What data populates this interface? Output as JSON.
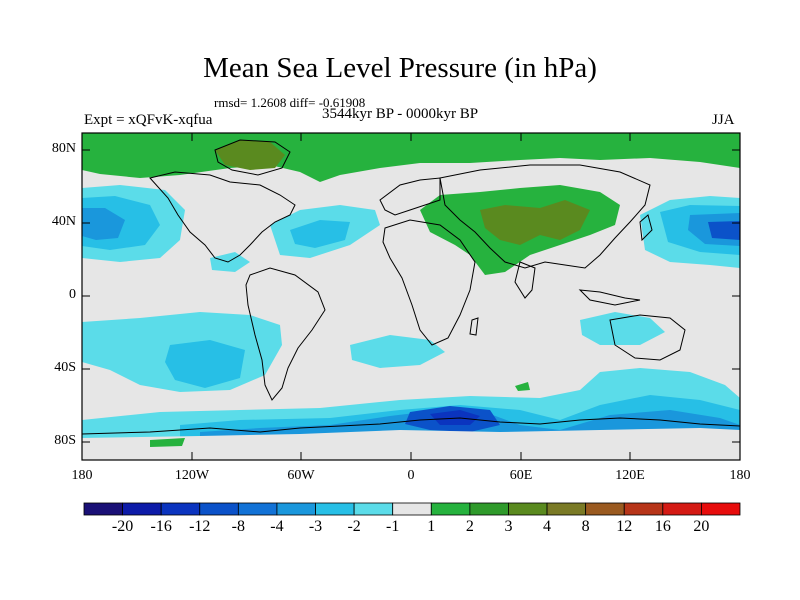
{
  "title": "Mean Sea Level Pressure (in hPa)",
  "stats_line": "rmsd= 1.2608 diff= -0.61908",
  "period": "3544kyr BP - 0000kyr BP",
  "experiment": "Expt = xQFvK-xqfua",
  "season": "JJA",
  "lat_labels": [
    "80N",
    "40N",
    "0",
    "40S",
    "80S"
  ],
  "lon_labels": [
    "180",
    "120W",
    "60W",
    "0",
    "60E",
    "120E",
    "180"
  ],
  "colorbar": {
    "labels": [
      "-20",
      "-16",
      "-12",
      "-8",
      "-4",
      "-3",
      "-2",
      "-1",
      "1",
      "2",
      "3",
      "4",
      "8",
      "12",
      "16",
      "20"
    ],
    "colors": [
      "#1a1076",
      "#0d1ba8",
      "#0b34bf",
      "#0b52c9",
      "#1272d6",
      "#1a97dc",
      "#27bfe6",
      "#5bdce9",
      "#e6e6e6",
      "#26b23e",
      "#2f9a2b",
      "#5a8a1f",
      "#7a7a26",
      "#9a5a20",
      "#b73519",
      "#d41a14",
      "#e70c0c"
    ]
  },
  "colors": {
    "land_line": "#000000",
    "neutral": "#e6e6e6",
    "green": "#26b23e",
    "dark_green": "#5a8a1f",
    "cyan_light": "#5bdce9",
    "cyan": "#27bfe6",
    "blue": "#1a97dc",
    "deep_blue": "#0b52c9"
  }
}
